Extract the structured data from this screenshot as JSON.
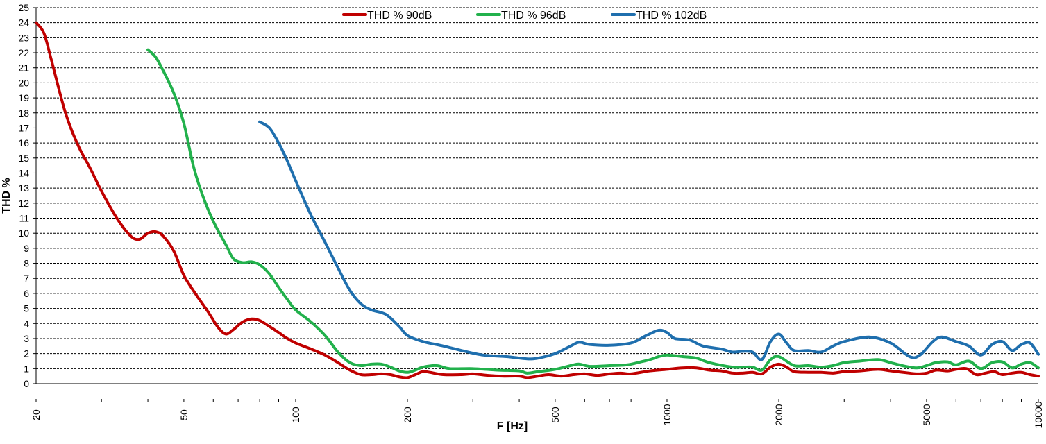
{
  "chart_data": {
    "type": "line",
    "title": "",
    "xlabel": "F [Hz]",
    "ylabel": "THD %",
    "x_scale": "log",
    "xlim": [
      20,
      10000
    ],
    "ylim": [
      0,
      25
    ],
    "x_ticks": [
      20,
      50,
      100,
      200,
      500,
      1000,
      2000,
      5000,
      10000
    ],
    "y_ticks": [
      0,
      1,
      2,
      3,
      4,
      5,
      6,
      7,
      8,
      9,
      10,
      11,
      12,
      13,
      14,
      15,
      16,
      17,
      18,
      19,
      20,
      21,
      22,
      23,
      24,
      25
    ],
    "grid": "horizontal-dashed",
    "legend_position": "top-center",
    "series": [
      {
        "name": "THD % 90dB",
        "color": "#c00000",
        "points": [
          [
            20,
            24
          ],
          [
            21,
            23.3
          ],
          [
            22,
            21.5
          ],
          [
            24,
            18
          ],
          [
            26,
            15.8
          ],
          [
            28,
            14.3
          ],
          [
            30,
            12.8
          ],
          [
            33,
            11
          ],
          [
            36,
            9.8
          ],
          [
            38,
            9.6
          ],
          [
            40,
            10
          ],
          [
            42,
            10.1
          ],
          [
            44,
            9.8
          ],
          [
            47,
            8.8
          ],
          [
            50,
            7.2
          ],
          [
            54,
            5.9
          ],
          [
            58,
            4.8
          ],
          [
            62,
            3.7
          ],
          [
            65,
            3.3
          ],
          [
            68,
            3.6
          ],
          [
            72,
            4.1
          ],
          [
            76,
            4.3
          ],
          [
            80,
            4.2
          ],
          [
            85,
            3.8
          ],
          [
            90,
            3.4
          ],
          [
            95,
            3
          ],
          [
            100,
            2.7
          ],
          [
            110,
            2.3
          ],
          [
            120,
            1.9
          ],
          [
            130,
            1.4
          ],
          [
            140,
            0.9
          ],
          [
            150,
            0.6
          ],
          [
            160,
            0.6
          ],
          [
            170,
            0.65
          ],
          [
            180,
            0.6
          ],
          [
            190,
            0.45
          ],
          [
            200,
            0.4
          ],
          [
            210,
            0.6
          ],
          [
            220,
            0.8
          ],
          [
            230,
            0.75
          ],
          [
            250,
            0.6
          ],
          [
            280,
            0.6
          ],
          [
            300,
            0.65
          ],
          [
            330,
            0.55
          ],
          [
            360,
            0.5
          ],
          [
            400,
            0.5
          ],
          [
            420,
            0.4
          ],
          [
            450,
            0.5
          ],
          [
            480,
            0.6
          ],
          [
            520,
            0.5
          ],
          [
            560,
            0.6
          ],
          [
            600,
            0.65
          ],
          [
            650,
            0.55
          ],
          [
            700,
            0.65
          ],
          [
            750,
            0.7
          ],
          [
            800,
            0.65
          ],
          [
            900,
            0.85
          ],
          [
            1000,
            0.95
          ],
          [
            1100,
            1.05
          ],
          [
            1200,
            1.05
          ],
          [
            1300,
            0.9
          ],
          [
            1400,
            0.85
          ],
          [
            1500,
            0.7
          ],
          [
            1600,
            0.7
          ],
          [
            1700,
            0.75
          ],
          [
            1800,
            0.65
          ],
          [
            1900,
            1.1
          ],
          [
            2000,
            1.3
          ],
          [
            2100,
            1.1
          ],
          [
            2200,
            0.8
          ],
          [
            2400,
            0.75
          ],
          [
            2600,
            0.75
          ],
          [
            2800,
            0.7
          ],
          [
            3000,
            0.8
          ],
          [
            3300,
            0.85
          ],
          [
            3700,
            0.95
          ],
          [
            4000,
            0.85
          ],
          [
            4500,
            0.7
          ],
          [
            4700,
            0.65
          ],
          [
            5000,
            0.7
          ],
          [
            5300,
            0.9
          ],
          [
            5700,
            0.85
          ],
          [
            6000,
            0.95
          ],
          [
            6400,
            1
          ],
          [
            6800,
            0.6
          ],
          [
            7200,
            0.7
          ],
          [
            7600,
            0.8
          ],
          [
            8000,
            0.6
          ],
          [
            8500,
            0.7
          ],
          [
            9000,
            0.75
          ],
          [
            9500,
            0.6
          ],
          [
            10000,
            0.5
          ]
        ]
      },
      {
        "name": "THD % 96dB",
        "color": "#22b14c",
        "points": [
          [
            40,
            22.2
          ],
          [
            42,
            21.7
          ],
          [
            44,
            20.8
          ],
          [
            47,
            19.3
          ],
          [
            50,
            17.3
          ],
          [
            53,
            14.5
          ],
          [
            56,
            12.6
          ],
          [
            60,
            10.8
          ],
          [
            65,
            9.2
          ],
          [
            68,
            8.3
          ],
          [
            72,
            8.05
          ],
          [
            76,
            8.1
          ],
          [
            80,
            7.9
          ],
          [
            85,
            7.3
          ],
          [
            90,
            6.4
          ],
          [
            95,
            5.6
          ],
          [
            100,
            4.9
          ],
          [
            110,
            4.1
          ],
          [
            120,
            3.2
          ],
          [
            130,
            2.1
          ],
          [
            140,
            1.4
          ],
          [
            150,
            1.2
          ],
          [
            160,
            1.3
          ],
          [
            170,
            1.3
          ],
          [
            180,
            1.1
          ],
          [
            190,
            0.85
          ],
          [
            200,
            0.75
          ],
          [
            210,
            0.9
          ],
          [
            220,
            1.1
          ],
          [
            240,
            1.2
          ],
          [
            260,
            1
          ],
          [
            300,
            1
          ],
          [
            350,
            0.9
          ],
          [
            400,
            0.85
          ],
          [
            420,
            0.7
          ],
          [
            450,
            0.8
          ],
          [
            500,
            0.95
          ],
          [
            550,
            1.2
          ],
          [
            580,
            1.3
          ],
          [
            620,
            1.15
          ],
          [
            700,
            1.2
          ],
          [
            780,
            1.25
          ],
          [
            850,
            1.45
          ],
          [
            900,
            1.6
          ],
          [
            950,
            1.8
          ],
          [
            1000,
            1.9
          ],
          [
            1100,
            1.8
          ],
          [
            1200,
            1.7
          ],
          [
            1300,
            1.4
          ],
          [
            1500,
            1.1
          ],
          [
            1600,
            1.1
          ],
          [
            1700,
            1.1
          ],
          [
            1800,
            0.9
          ],
          [
            1900,
            1.6
          ],
          [
            2000,
            1.8
          ],
          [
            2200,
            1.2
          ],
          [
            2400,
            1.2
          ],
          [
            2600,
            1.1
          ],
          [
            2800,
            1.2
          ],
          [
            3000,
            1.4
          ],
          [
            3300,
            1.5
          ],
          [
            3700,
            1.6
          ],
          [
            4000,
            1.4
          ],
          [
            4300,
            1.2
          ],
          [
            4700,
            1.05
          ],
          [
            5000,
            1.2
          ],
          [
            5300,
            1.4
          ],
          [
            5700,
            1.45
          ],
          [
            6000,
            1.25
          ],
          [
            6500,
            1.5
          ],
          [
            7000,
            1
          ],
          [
            7500,
            1.4
          ],
          [
            8000,
            1.45
          ],
          [
            8500,
            1.05
          ],
          [
            9000,
            1.3
          ],
          [
            9500,
            1.4
          ],
          [
            10000,
            1.05
          ]
        ]
      },
      {
        "name": "THD % 102dB",
        "color": "#1f6fae",
        "points": [
          [
            80,
            17.4
          ],
          [
            85,
            17
          ],
          [
            90,
            16
          ],
          [
            95,
            14.8
          ],
          [
            100,
            13.5
          ],
          [
            110,
            11.2
          ],
          [
            120,
            9.4
          ],
          [
            130,
            7.7
          ],
          [
            140,
            6.2
          ],
          [
            150,
            5.3
          ],
          [
            160,
            4.9
          ],
          [
            175,
            4.6
          ],
          [
            190,
            3.8
          ],
          [
            200,
            3.2
          ],
          [
            220,
            2.8
          ],
          [
            250,
            2.5
          ],
          [
            280,
            2.2
          ],
          [
            320,
            1.9
          ],
          [
            370,
            1.8
          ],
          [
            420,
            1.65
          ],
          [
            450,
            1.7
          ],
          [
            500,
            2
          ],
          [
            550,
            2.5
          ],
          [
            580,
            2.75
          ],
          [
            620,
            2.6
          ],
          [
            700,
            2.55
          ],
          [
            800,
            2.7
          ],
          [
            880,
            3.2
          ],
          [
            950,
            3.55
          ],
          [
            1000,
            3.4
          ],
          [
            1050,
            3
          ],
          [
            1150,
            2.9
          ],
          [
            1250,
            2.5
          ],
          [
            1400,
            2.3
          ],
          [
            1500,
            2.1
          ],
          [
            1600,
            2.15
          ],
          [
            1700,
            2.1
          ],
          [
            1800,
            1.6
          ],
          [
            1900,
            2.8
          ],
          [
            2000,
            3.3
          ],
          [
            2100,
            2.7
          ],
          [
            2200,
            2.2
          ],
          [
            2400,
            2.2
          ],
          [
            2600,
            2.1
          ],
          [
            2800,
            2.5
          ],
          [
            3000,
            2.8
          ],
          [
            3500,
            3.1
          ],
          [
            4000,
            2.7
          ],
          [
            4500,
            1.8
          ],
          [
            4800,
            1.9
          ],
          [
            5200,
            2.8
          ],
          [
            5500,
            3.1
          ],
          [
            6000,
            2.8
          ],
          [
            6500,
            2.5
          ],
          [
            7000,
            1.9
          ],
          [
            7500,
            2.6
          ],
          [
            8000,
            2.8
          ],
          [
            8500,
            2.2
          ],
          [
            9000,
            2.6
          ],
          [
            9500,
            2.7
          ],
          [
            10000,
            1.95
          ]
        ]
      }
    ]
  }
}
